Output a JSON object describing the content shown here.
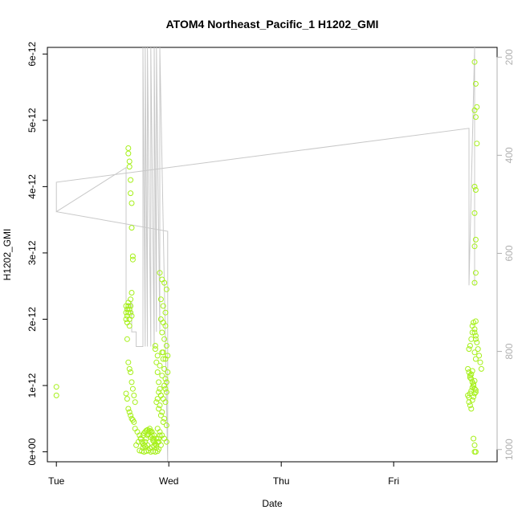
{
  "chart_data": {
    "type": "scatter",
    "title": "ATOM4 Northeast_Pacific_1 H1202_GMI",
    "xlabel": "Date",
    "ylabel": "H1202_GMI",
    "x_ticks": [
      "Tue",
      "Wed",
      "Thu",
      "Fri"
    ],
    "y_ticks": [
      "0e+00",
      "1e-12",
      "2e-12",
      "3e-12",
      "4e-12",
      "5e-12",
      "6e-12"
    ],
    "y_tick_values": [
      0,
      1e-12,
      2e-12,
      3e-12,
      4e-12,
      5e-12,
      6e-12
    ],
    "ylim": [
      -1.5e-13,
      6.1e-12
    ],
    "xlim_days": [
      -0.08,
      3.92
    ],
    "y2_ticks": [
      "200",
      "400",
      "600",
      "800",
      "1000"
    ],
    "y2_tick_values": [
      200,
      400,
      600,
      800,
      1000
    ],
    "y2lim": [
      1025,
      180
    ],
    "y2_reversed": true,
    "colors": {
      "points": "#a6f01a",
      "pressure_line": "#c8c8c8",
      "axis_right": "#b0b0b0"
    },
    "series": [
      {
        "kind": "points",
        "x": [
          0.0,
          0.0,
          0.62,
          0.62,
          0.62,
          0.63,
          0.63,
          0.63,
          0.64,
          0.64,
          0.64,
          0.65,
          0.65,
          0.65,
          0.66,
          0.66,
          0.66,
          0.67,
          0.67,
          0.64,
          0.64,
          0.65,
          0.65,
          0.66,
          0.66,
          0.67,
          0.67,
          0.68,
          0.68,
          0.63,
          0.64,
          0.65,
          0.66,
          0.67,
          0.68,
          0.69,
          0.7,
          0.62,
          0.63,
          0.64,
          0.65,
          0.66,
          0.67,
          0.68,
          0.69,
          0.7,
          0.72,
          0.74,
          0.75,
          0.76,
          0.77,
          0.78,
          0.79,
          0.8,
          0.81,
          0.82,
          0.83,
          0.84,
          0.85,
          0.86,
          0.87,
          0.88,
          0.89,
          0.9,
          0.91,
          0.92,
          0.71,
          0.73,
          0.75,
          0.77,
          0.79,
          0.81,
          0.83,
          0.85,
          0.87,
          0.89,
          0.91,
          0.93,
          0.78,
          0.8,
          0.82,
          0.84,
          0.86,
          0.88,
          0.74,
          0.76,
          0.78,
          0.8,
          0.82,
          0.84,
          0.86,
          0.88,
          0.9,
          0.77,
          0.79,
          0.81,
          0.83,
          0.85,
          0.87,
          0.89,
          0.91,
          0.88,
          0.89,
          0.9,
          0.91,
          0.92,
          0.93,
          0.94,
          0.95,
          0.96,
          0.97,
          0.88,
          0.9,
          0.92,
          0.94,
          0.96,
          0.98,
          0.89,
          0.91,
          0.93,
          0.95,
          0.9,
          0.92,
          0.94,
          0.96,
          0.98,
          0.9,
          0.92,
          0.94,
          0.96,
          0.98,
          0.91,
          0.93,
          0.95,
          0.97,
          0.92,
          0.94,
          0.96,
          0.98,
          0.93,
          0.95,
          0.97,
          0.93,
          0.95,
          0.97,
          0.94,
          0.96,
          0.98,
          0.95,
          0.97,
          0.99,
          0.99,
          0.98,
          0.97,
          3.67,
          3.68,
          3.69,
          3.7,
          3.7,
          3.71,
          3.72,
          3.73,
          3.74,
          3.75,
          3.76,
          3.77,
          3.78,
          3.66,
          3.67,
          3.68,
          3.69,
          3.7,
          3.71,
          3.72,
          3.73,
          3.66,
          3.67,
          3.68,
          3.69,
          3.7,
          3.71,
          3.72,
          3.67,
          3.68,
          3.69,
          3.7,
          3.71,
          3.72,
          3.73,
          3.68,
          3.69,
          3.7,
          3.72,
          3.73,
          3.74,
          3.72,
          3.73,
          3.74,
          3.72,
          3.73,
          3.72,
          3.73,
          3.72,
          3.73,
          3.72,
          3.73,
          3.72,
          3.73,
          3.72,
          3.73,
          3.71,
          3.72,
          3.73,
          3.72
        ],
        "y": [
          9.8e-13,
          8.5e-13,
          2.2e-12,
          2.1e-12,
          2e-12,
          2.15e-12,
          2.05e-12,
          1.95e-12,
          2.2e-12,
          2.1e-12,
          2.25e-12,
          2e-12,
          2.15e-12,
          1.9e-12,
          2.2e-12,
          2.3e-12,
          2.1e-12,
          2.4e-12,
          2.05e-12,
          4.58e-12,
          4.5e-12,
          4.38e-12,
          4.3e-12,
          4.1e-12,
          3.9e-12,
          3.75e-12,
          3.38e-12,
          2.95e-12,
          2.9e-12,
          1.7e-12,
          1.35e-12,
          1.25e-12,
          1.2e-12,
          1.05e-12,
          9.5e-13,
          8.5e-13,
          7.5e-13,
          8.8e-13,
          8e-13,
          6.5e-13,
          6e-13,
          5.5e-13,
          5e-13,
          4.8e-13,
          4.5e-13,
          3.5e-13,
          3e-13,
          2.5e-13,
          2e-13,
          1.5e-13,
          1.2e-13,
          1e-13,
          1.5e-13,
          2e-13,
          2.5e-13,
          3e-13,
          3.2e-13,
          3e-13,
          2.5e-13,
          2e-13,
          1.5e-13,
          1.2e-13,
          1e-13,
          1.5e-13,
          2e-13,
          2.5e-13,
          1e-13,
          1.5e-13,
          2e-13,
          2.5e-13,
          3e-13,
          3.3e-13,
          3.5e-13,
          3e-13,
          2.5e-13,
          2e-13,
          1.5e-13,
          1e-13,
          2.8e-13,
          3.2e-13,
          2.7e-13,
          2.2e-13,
          1.7e-13,
          1.2e-13,
          2e-14,
          1e-14,
          0.0,
          1e-14,
          2e-14,
          0.0,
          1e-14,
          0.0,
          1e-14,
          6e-14,
          8e-14,
          1e-13,
          5e-14,
          7e-14,
          9e-14,
          6e-14,
          4e-14,
          1.55e-12,
          1.35e-12,
          1.2e-12,
          1.05e-12,
          9.5e-13,
          8.5e-13,
          1.5e-12,
          1.4e-12,
          1.25e-12,
          1.1e-12,
          1.6e-12,
          1.45e-12,
          1.3e-12,
          1.15e-12,
          1e-12,
          9e-13,
          7.5e-13,
          6.5e-13,
          5.5e-13,
          4.5e-13,
          8e-13,
          7e-13,
          6e-13,
          5e-13,
          4e-13,
          3.5e-13,
          3e-13,
          2.5e-13,
          2e-13,
          1.5e-13,
          9e-13,
          8.5e-13,
          8e-13,
          7.5e-13,
          2.7e-12,
          2.6e-12,
          2.55e-12,
          2.45e-12,
          2.3e-12,
          2.2e-12,
          2.1e-12,
          2e-12,
          1.95e-12,
          1.9e-12,
          1.8e-12,
          1.7e-12,
          1.6e-12,
          1.5e-12,
          1.4e-12,
          1.45e-12,
          1.2e-12,
          1.05e-12,
          9.5e-13,
          1.55e-12,
          1.6e-12,
          1.7e-12,
          1.8e-12,
          1.9e-12,
          1.95e-12,
          1.85e-12,
          1.75e-12,
          1.65e-12,
          1.55e-12,
          1.45e-12,
          1.35e-12,
          1.25e-12,
          1.25e-12,
          1.2e-12,
          1.15e-12,
          1.1e-12,
          1.05e-12,
          1e-12,
          9.5e-13,
          9e-13,
          8.5e-13,
          8.2e-13,
          8.8e-13,
          9.2e-13,
          9.7e-13,
          1.02e-12,
          1.07e-12,
          7.5e-13,
          7e-13,
          6.5e-13,
          7.8e-13,
          8.3e-13,
          8.8e-13,
          9.3e-13,
          1.12e-12,
          1.17e-12,
          1.22e-12,
          5.88e-12,
          5.55e-12,
          5.2e-12,
          5.15e-12,
          5.05e-12,
          4.65e-12,
          4e-12,
          3.95e-12,
          3.6e-12,
          3.2e-12,
          3.1e-12,
          2.7e-12,
          2.55e-12,
          1.97e-12,
          1.8e-12,
          1.7e-12,
          1.5e-12,
          1.4e-12,
          2e-13,
          1e-13,
          0.0,
          0.0
        ]
      },
      {
        "kind": "line",
        "axis": "right",
        "x": [
          0.0,
          0.0,
          0.62,
          0.62,
          0.67,
          0.67,
          0.71,
          0.71,
          0.77,
          0.77,
          0.79,
          0.79,
          0.81,
          0.81,
          0.84,
          0.84,
          0.87,
          0.87,
          0.89,
          0.89,
          0.92,
          0.92,
          0.99,
          0.99,
          0.99,
          0.0,
          0.0,
          3.67,
          3.67,
          3.72,
          3.72
        ],
        "y": [
          455,
          515,
          425,
          715,
          700,
          760,
          760,
          790,
          790,
          180,
          790,
          180,
          790,
          180,
          790,
          180,
          790,
          180,
          760,
          180,
          760,
          180,
          1030,
          840,
          555,
          515,
          455,
          345,
          665,
          180,
          665
        ]
      }
    ]
  }
}
